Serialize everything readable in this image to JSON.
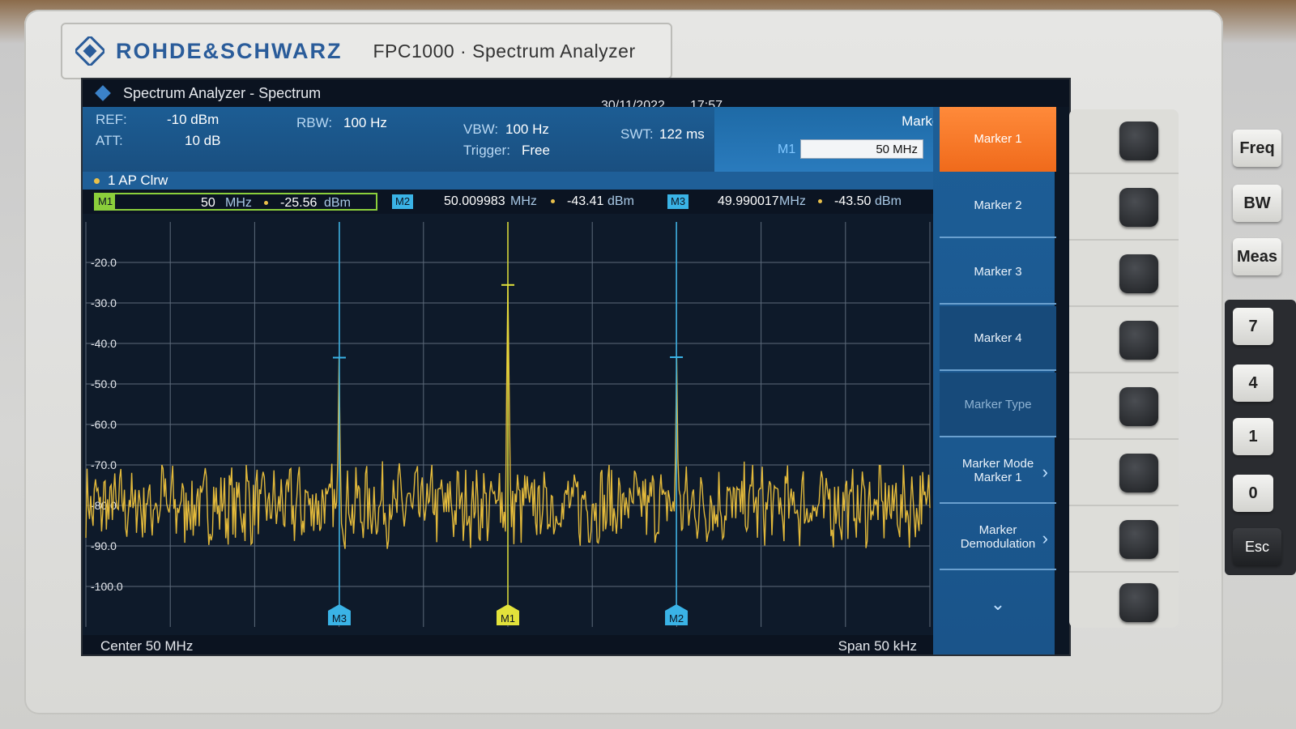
{
  "device": {
    "brand": "ROHDE&SCHWARZ",
    "model": "FPC1000 · Spectrum Analyzer"
  },
  "screen": {
    "title": "Spectrum Analyzer - Spectrum",
    "date": "30/11/2022",
    "time": "17:57",
    "settings": {
      "ref_label": "REF:",
      "ref_value": "-10 dBm",
      "att_label": "ATT:",
      "att_value": "10 dB",
      "rbw_label": "RBW:",
      "rbw_value": "100 Hz",
      "vbw_label": "VBW:",
      "vbw_value": "100 Hz",
      "trigger_label": "Trigger:",
      "trigger_value": "Free",
      "swt_label": "SWT:",
      "swt_value": "122 ms"
    },
    "marker_header": {
      "title": "Marker",
      "input_label": "M1",
      "input_value": "50 MHz"
    },
    "trace": "1 AP Clrw",
    "markers": [
      {
        "tag": "M1",
        "freq": "50",
        "freq_unit": "MHz",
        "level": "-25.56",
        "level_unit": "dBm"
      },
      {
        "tag": "M2",
        "freq": "50.009983",
        "freq_unit": "MHz",
        "level": "-43.41",
        "level_unit": "dBm"
      },
      {
        "tag": "M3",
        "freq": "49.990017",
        "freq_unit": "MHz",
        "level": "-43.50",
        "level_unit": "dBm"
      }
    ],
    "center": "Center 50 MHz",
    "span": "Span 50 kHz",
    "softkeys": [
      {
        "label": "Marker 1"
      },
      {
        "label": "Marker 2"
      },
      {
        "label": "Marker 3"
      },
      {
        "label": "Marker 4"
      },
      {
        "label": "Marker Type"
      },
      {
        "label": "Marker Mode\nMarker 1"
      },
      {
        "label": "Marker\nDemodulation"
      }
    ]
  },
  "chart_data": {
    "type": "line",
    "y_tick_labels": [
      "-20.0",
      "-30.0",
      "-40.0",
      "-50.0",
      "-60.0",
      "-70.0",
      "-80.0",
      "-90.0",
      "-100.0"
    ],
    "ylim": [
      -110,
      -10
    ],
    "xlim": [
      49.975,
      50.025
    ],
    "grid": true,
    "series": [
      {
        "color": "#e2b93b",
        "x": [
          49.975,
          49.977,
          49.979,
          49.9795,
          49.981,
          49.983,
          49.984,
          49.9845,
          49.986,
          49.988,
          49.9895,
          49.99,
          49.9905,
          49.992,
          49.994,
          49.9955,
          49.9965,
          49.998,
          49.999,
          49.9995,
          50.0,
          50.0005,
          50.001,
          50.003,
          50.005,
          50.006,
          50.008,
          50.0095,
          50.01,
          50.0105,
          50.012,
          50.014,
          50.0145,
          50.016,
          50.018,
          50.019,
          50.021,
          50.023,
          50.025
        ],
        "y": [
          -83,
          -80,
          -78,
          -70,
          -79,
          -80,
          -77,
          -70,
          -80,
          -79,
          -80,
          -43.5,
          -81,
          -79,
          -80,
          -70,
          -80,
          -79,
          -74,
          -72,
          -25.56,
          -78,
          -80,
          -79,
          -80,
          -70,
          -80,
          -79,
          -43.41,
          -80,
          -79,
          -80,
          -70,
          -80,
          -79,
          -76,
          -80,
          -79,
          -82
        ]
      }
    ],
    "markers": [
      {
        "name": "M1",
        "x": 50.0,
        "y": -25.56,
        "color": "#e2e23b"
      },
      {
        "name": "M2",
        "x": 50.009983,
        "y": -43.41,
        "color": "#3ab3e6"
      },
      {
        "name": "M3",
        "x": 49.990017,
        "y": -43.5,
        "color": "#3ab3e6"
      }
    ]
  },
  "hardware_keys": {
    "side": [
      "Freq",
      "BW",
      "Meas"
    ],
    "numeric": [
      "7",
      "4",
      "1",
      "0"
    ],
    "esc": "Esc"
  }
}
